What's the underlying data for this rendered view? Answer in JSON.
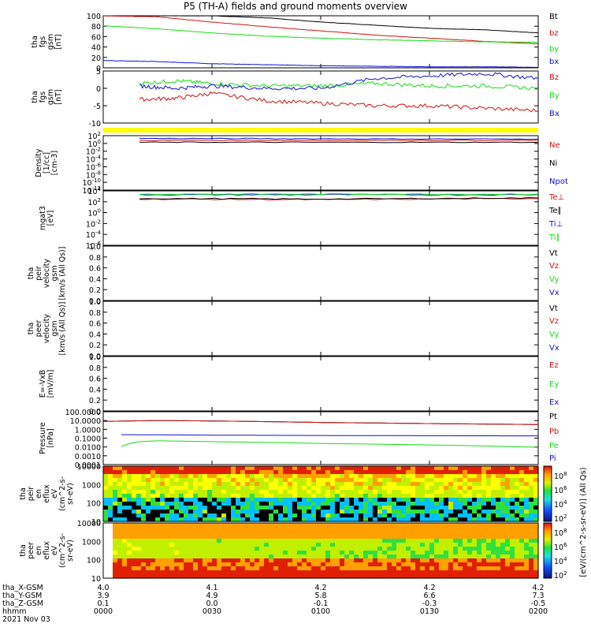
{
  "title": "P5 (TH-A) fields and ground moments overview",
  "colors": {
    "black": "#000000",
    "red": "#d01010",
    "green": "#10e010",
    "blue": "#1010d0",
    "yellow": "#ffff00"
  },
  "chart_data": [
    {
      "id": "fgs_gsm_nT",
      "type": "line",
      "ylabel": [
        "tha",
        "fgs",
        "gsm",
        "[nT]"
      ],
      "ylim": [
        0,
        100
      ],
      "yticks": [
        "100",
        "80",
        "60",
        "40",
        "20",
        "0"
      ],
      "series": [
        {
          "name": "Bt",
          "color": "black",
          "x": [
            "0000",
            "0015",
            "0030",
            "0045",
            "0100",
            "0115",
            "0130",
            "0145",
            "0200"
          ],
          "values": [
            100,
            100,
            100,
            96,
            88,
            82,
            76,
            73,
            67
          ]
        },
        {
          "name": "bz",
          "color": "red",
          "x": [
            "0000",
            "0015",
            "0030",
            "0045",
            "0100",
            "0115",
            "0130",
            "0145",
            "0200"
          ],
          "values": [
            100,
            98,
            88,
            79,
            71,
            63,
            57,
            51,
            46
          ]
        },
        {
          "name": "by",
          "color": "green",
          "x": [
            "0000",
            "0015",
            "0030",
            "0045",
            "0100",
            "0115",
            "0130",
            "0145",
            "0200"
          ],
          "values": [
            81,
            75,
            67,
            61,
            57,
            54,
            52,
            50,
            49
          ]
        },
        {
          "name": "bx",
          "color": "blue",
          "x": [
            "0000",
            "0015",
            "0030",
            "0045",
            "0100",
            "0115",
            "0130",
            "0145",
            "0200"
          ],
          "values": [
            14,
            12,
            8,
            6,
            4,
            3,
            2,
            2,
            1
          ]
        }
      ]
    },
    {
      "id": "fgs_gsm_zoom",
      "type": "line",
      "ylabel": [
        "tha",
        "fgs",
        "gsm",
        "[nT]"
      ],
      "ylim": [
        -14,
        7
      ],
      "yticks": [
        "5",
        "0",
        "-5",
        "-10"
      ],
      "series": [
        {
          "name": "Bz",
          "color": "red",
          "x": [
            "0010",
            "0020",
            "0030",
            "0045",
            "0100",
            "0115",
            "0130",
            "0145",
            "0200"
          ],
          "values": [
            -4.5,
            -4,
            -2,
            -5,
            -6,
            -7,
            -7,
            -8,
            -9
          ]
        },
        {
          "name": "By",
          "color": "green",
          "x": [
            "0010",
            "0020",
            "0030",
            "0045",
            "0100",
            "0115",
            "0130",
            "0145",
            "0200"
          ],
          "values": [
            2,
            3,
            2,
            1,
            1,
            2,
            1,
            1,
            0
          ]
        },
        {
          "name": "Bx",
          "color": "blue",
          "x": [
            "0010",
            "0020",
            "0030",
            "0045",
            "0100",
            "0115",
            "0130",
            "0145",
            "0200"
          ],
          "values": [
            1,
            0,
            1,
            0,
            0,
            4,
            5,
            6,
            4
          ]
        }
      ]
    },
    {
      "id": "density",
      "type": "line",
      "log": true,
      "ylabel": [
        "Density",
        "[1/cc]",
        "[cm-3]"
      ],
      "ylim": [
        -12,
        2
      ],
      "yticks": [
        "10^2",
        "10^0",
        "10^-2",
        "10^-4",
        "10^-6",
        "10^-8",
        "10^-10",
        "10^-12"
      ],
      "series": [
        {
          "name": "Ne",
          "color": "red",
          "x": [
            "0010",
            "0100",
            "0200"
          ],
          "values": [
            0.8,
            0.8,
            0.8
          ]
        },
        {
          "name": "Ni",
          "color": "black",
          "x": [
            "0010",
            "0100",
            "0200"
          ],
          "values": [
            0.3,
            0.3,
            0.3
          ]
        },
        {
          "name": "Npot",
          "color": "blue",
          "x": [
            "0010",
            "0100",
            "0200"
          ],
          "values": [
            1.3,
            1.2,
            1.1
          ]
        }
      ]
    },
    {
      "id": "temperature",
      "type": "line",
      "log": true,
      "ylabel": [
        "mgat3",
        "[eV]"
      ],
      "ylim": [
        -6,
        4
      ],
      "yticks": [
        "10^4",
        "10^2",
        "10^0",
        "10^-2",
        "10^-4",
        "10^-6"
      ],
      "series": [
        {
          "name": "Te⊥",
          "color": "red",
          "x": [
            "0010",
            "0100",
            "0200"
          ],
          "values": [
            2.5,
            2.4,
            2.6
          ]
        },
        {
          "name": "Te∥",
          "color": "black",
          "x": [
            "0010",
            "0100",
            "0200"
          ],
          "values": [
            2.6,
            2.5,
            2.7
          ]
        },
        {
          "name": "Ti⊥",
          "color": "blue",
          "x": [
            "0010",
            "0100",
            "0200"
          ],
          "values": [
            3.3,
            3.3,
            3.3
          ]
        },
        {
          "name": "Ti∥",
          "color": "green",
          "x": [
            "0010",
            "0100",
            "0200"
          ],
          "values": [
            3.4,
            3.4,
            3.4
          ]
        }
      ]
    },
    {
      "id": "peir_velocity",
      "type": "line",
      "ylabel": [
        "tha",
        "peir",
        "velocity",
        "gsm",
        "[km/s (All Qs)]"
      ],
      "ylim": [
        0,
        1
      ],
      "yticks": [
        "1.0",
        "0.8",
        "0.6",
        "0.4",
        "0.2",
        "0.0"
      ],
      "series": [
        {
          "name": "Vt",
          "color": "black",
          "values": []
        },
        {
          "name": "Vz",
          "color": "red",
          "values": []
        },
        {
          "name": "Vy",
          "color": "green",
          "values": []
        },
        {
          "name": "Vx",
          "color": "blue",
          "values": []
        }
      ]
    },
    {
      "id": "peer_velocity",
      "type": "line",
      "ylabel": [
        "tha",
        "peer",
        "velocity",
        "gsm",
        "[km/s (All Qs)]"
      ],
      "ylim": [
        0,
        1
      ],
      "yticks": [
        "1.0",
        "0.8",
        "0.6",
        "0.4",
        "0.2",
        "0.0"
      ],
      "series": [
        {
          "name": "Vt",
          "color": "black",
          "values": []
        },
        {
          "name": "Vz",
          "color": "red",
          "values": []
        },
        {
          "name": "Vy",
          "color": "green",
          "values": []
        },
        {
          "name": "Vx",
          "color": "blue",
          "values": []
        }
      ]
    },
    {
      "id": "efield",
      "type": "line",
      "ylabel": [
        "E=-VxB",
        "[mV/m]"
      ],
      "ylim": [
        0,
        1
      ],
      "yticks": [
        "1.0",
        "0.8",
        "0.6",
        "0.4",
        "0.2",
        "0.0"
      ],
      "series": [
        {
          "name": "Ez",
          "color": "red",
          "values": []
        },
        {
          "name": "Ey",
          "color": "green",
          "values": []
        },
        {
          "name": "Ex",
          "color": "blue",
          "values": []
        }
      ]
    },
    {
      "id": "pressure",
      "type": "line",
      "log": true,
      "ylabel": [
        "Pressure",
        "[nPa]"
      ],
      "ylim": [
        -4,
        2
      ],
      "yticks": [
        "100.0000",
        "10.0000",
        "1.0000",
        "0.1000",
        "0.0100",
        "0.0010",
        "0.0001"
      ],
      "series": [
        {
          "name": "Pt",
          "color": "black",
          "x": [
            "0000",
            "0015",
            "0030",
            "0100",
            "0130",
            "0200"
          ],
          "values": [
            8,
            10,
            9,
            6,
            4.5,
            3.5
          ]
        },
        {
          "name": "Pb",
          "color": "red",
          "x": [
            "0000",
            "0015",
            "0030",
            "0100",
            "0130",
            "0200"
          ],
          "values": [
            8,
            10,
            9,
            6,
            4.5,
            3.5
          ]
        },
        {
          "name": "Pe",
          "color": "green",
          "x": [
            "0005",
            "0010",
            "0015",
            "0030",
            "0100",
            "0130",
            "0200"
          ],
          "values": [
            0.01,
            0.04,
            0.05,
            0.04,
            0.025,
            0.017,
            0.009
          ]
        },
        {
          "name": "Pi",
          "color": "blue",
          "x": [
            "0005",
            "0030",
            "0100",
            "0130",
            "0200"
          ],
          "values": [
            0.25,
            0.22,
            0.2,
            0.19,
            0.18
          ]
        }
      ]
    },
    {
      "id": "peir_spectrogram",
      "type": "heatmap",
      "ylabel": [
        "tha",
        "peir",
        "en",
        "eflux",
        "eV",
        "(cm^2-s-",
        "sr-eV)"
      ],
      "yticks": [
        "10000",
        "1000",
        "100",
        "10"
      ]
    },
    {
      "id": "peer_spectrogram",
      "type": "heatmap",
      "ylabel": [
        "tha",
        "peer",
        "en",
        "eflux",
        "eV",
        "(cm^2-s-",
        "sr-eV)"
      ],
      "yticks": [
        "10000",
        "1000",
        "100",
        "10"
      ]
    }
  ],
  "colorbar": {
    "label": "[eV/(cm^2-s-sr-eV)] (All Qs)",
    "ticks_top": [
      "10^8",
      "10^6",
      "10^4",
      "10^2"
    ],
    "ticks_bottom": [
      "10^8",
      "10^6",
      "10^4",
      "10^2"
    ]
  },
  "xaxis": {
    "rows": [
      {
        "label": "tha_X-GSM",
        "values": [
          "4.0",
          "4.1",
          "4.2",
          "4.2",
          "4.2"
        ]
      },
      {
        "label": "tha_Y-GSM",
        "values": [
          "3.9",
          "4.9",
          "5.8",
          "6.6",
          "7.3"
        ]
      },
      {
        "label": "tha_Z-GSM",
        "values": [
          "0.1",
          "0.0",
          "-0.1",
          "-0.3",
          "-0.5"
        ]
      },
      {
        "label": "hhmm",
        "values": [
          "0000",
          "0030",
          "0100",
          "0130",
          "0200"
        ]
      }
    ],
    "date": "2021 Nov 03"
  }
}
